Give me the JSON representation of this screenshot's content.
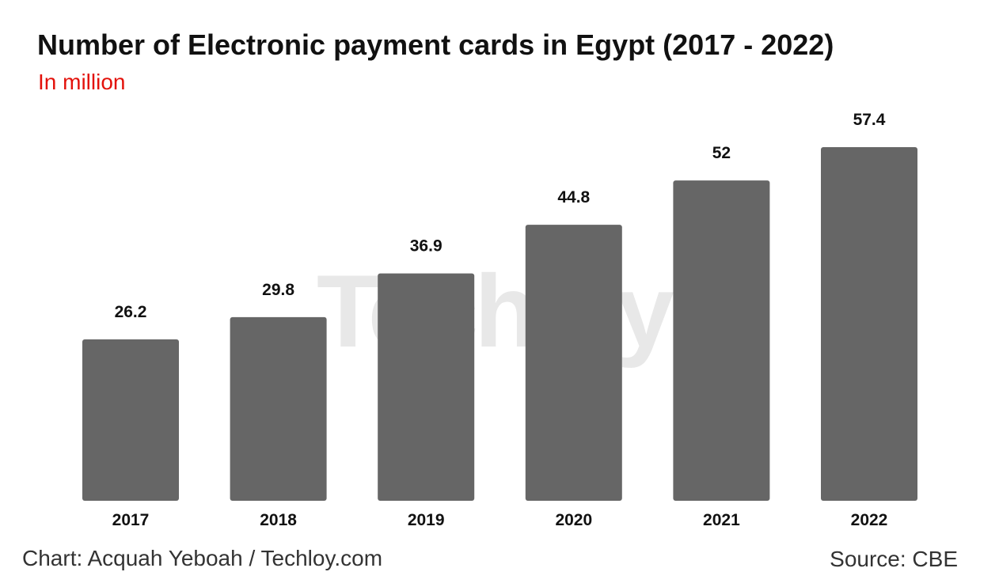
{
  "title": "Number of Electronic payment cards in Egypt (2017 - 2022)",
  "subtitle": "In million",
  "credit": "Chart: Acquah Yeboah / Techloy.com",
  "source": "Source: CBE",
  "watermark": "Techloy",
  "colors": {
    "bar": "#666666",
    "subtitle": "#e3120b",
    "text": "#111111",
    "watermark_dot": "#e3120b"
  },
  "chart_data": {
    "type": "bar",
    "title": "Number of Electronic payment cards in Egypt (2017 - 2022)",
    "subtitle": "In million",
    "categories": [
      "2017",
      "2018",
      "2019",
      "2020",
      "2021",
      "2022"
    ],
    "values": [
      26.2,
      29.8,
      36.9,
      44.8,
      52,
      57.4
    ],
    "data_labels": [
      "26.2",
      "29.8",
      "36.9",
      "44.8",
      "52",
      "57.4"
    ],
    "xlabel": "",
    "ylabel": "",
    "ylim": [
      0,
      57.4
    ],
    "grid": false,
    "legend": "none"
  }
}
